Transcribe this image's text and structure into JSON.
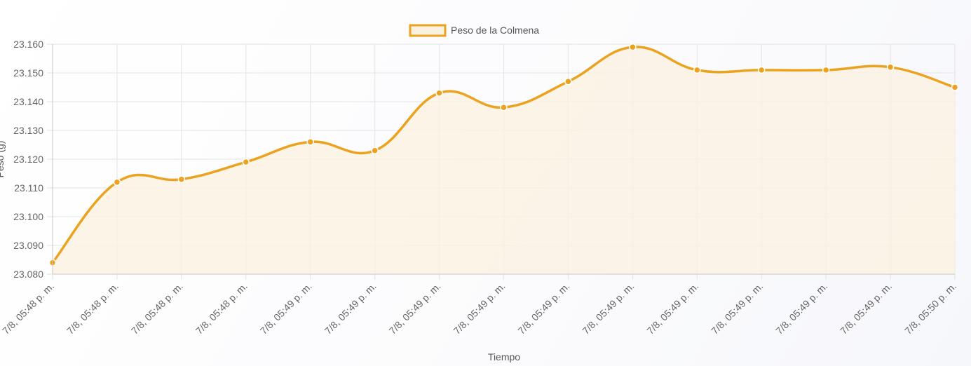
{
  "chart_data": {
    "type": "line",
    "xlabel": "Tiempo",
    "ylabel": "Peso (g)",
    "legend_position": "top",
    "grid": true,
    "colors": {
      "line": "#EBA21F",
      "fill": "#FBF1E1",
      "grid": "#E3E3E3",
      "axis": "#C8C8C8"
    },
    "ylim": [
      23.08,
      23.16
    ],
    "y_ticks": [
      "23.080",
      "23.090",
      "23.100",
      "23.110",
      "23.120",
      "23.130",
      "23.140",
      "23.150",
      "23.160"
    ],
    "categories": [
      "7/8, 05:48 p. m.",
      "7/8, 05:48 p. m.",
      "7/8, 05:48 p. m.",
      "7/8, 05:48 p. m.",
      "7/8, 05:49 p. m.",
      "7/8, 05:49 p. m.",
      "7/8, 05:49 p. m.",
      "7/8, 05:49 p. m.",
      "7/8, 05:49 p. m.",
      "7/8, 05:49 p. m.",
      "7/8, 05:49 p. m.",
      "7/8, 05:49 p. m.",
      "7/8, 05:49 p. m.",
      "7/8, 05:49 p. m.",
      "7/8, 05:50 p. m."
    ],
    "series": [
      {
        "name": "Peso de la Colmena",
        "values": [
          23.084,
          23.112,
          23.113,
          23.119,
          23.126,
          23.123,
          23.143,
          23.138,
          23.147,
          23.159,
          23.151,
          23.151,
          23.151,
          23.152,
          23.145
        ]
      }
    ]
  }
}
